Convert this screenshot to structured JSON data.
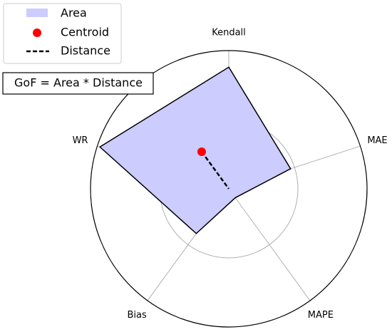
{
  "chart_data": {
    "type": "radar",
    "categories": [
      "Kendall",
      "MAE",
      "MAPE",
      "Bias",
      "WR"
    ],
    "series": [
      {
        "name": "Area",
        "color": "#ccccff",
        "values": [
          0.88,
          0.47,
          0.08,
          0.4,
          0.98
        ]
      }
    ],
    "centroid": {
      "name": "Centroid",
      "color": "#ff0000",
      "x": -0.196,
      "y": 0.268
    },
    "distance": {
      "name": "Distance",
      "color": "#000000"
    },
    "annotation": "GoF = Area * Distance",
    "ylim": [
      0,
      1
    ],
    "grid_radii": [
      0.5
    ],
    "start_angle": 90,
    "direction": "clockwise",
    "legend": "upper left"
  }
}
